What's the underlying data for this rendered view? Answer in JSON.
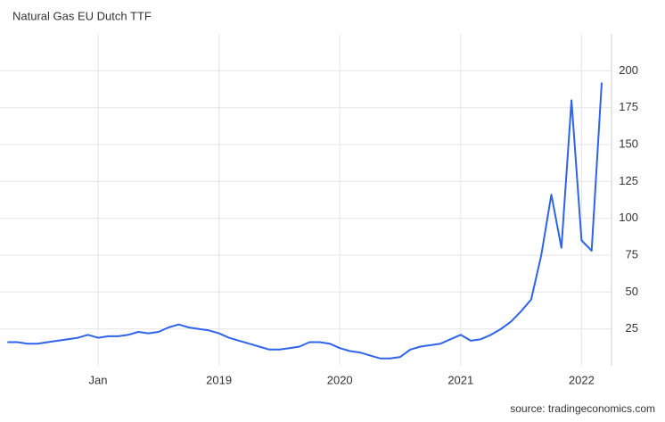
{
  "chart_data": {
    "type": "line",
    "title": "Natural Gas EU Dutch TTF",
    "source": "source: tradingeconomics.com",
    "categories": [
      null,
      null,
      null,
      null,
      null,
      null,
      null,
      null,
      null,
      "Jan",
      null,
      null,
      null,
      null,
      null,
      null,
      null,
      null,
      null,
      null,
      null,
      "2019",
      null,
      null,
      null,
      null,
      null,
      null,
      null,
      null,
      null,
      null,
      null,
      "2020",
      null,
      null,
      null,
      null,
      null,
      null,
      null,
      null,
      null,
      null,
      null,
      "2021",
      null,
      null,
      null,
      null,
      null,
      null,
      null,
      null,
      null,
      null,
      null,
      "2022",
      null,
      null
    ],
    "series": [
      {
        "name": "Natural Gas EU Dutch TTF",
        "color": "#2f64e8",
        "values": [
          16,
          16,
          15,
          15,
          16,
          17,
          18,
          19,
          21,
          19,
          20,
          20,
          21,
          23,
          22,
          23,
          26,
          28,
          26,
          25,
          24,
          22,
          19,
          17,
          15,
          13,
          11,
          11,
          12,
          13,
          16,
          16,
          15,
          12,
          10,
          9,
          7,
          5,
          5,
          6,
          11,
          13,
          14,
          15,
          18,
          21,
          17,
          18,
          21,
          25,
          30,
          37,
          45,
          75,
          116,
          80,
          180,
          85,
          78,
          192
        ]
      }
    ],
    "ylim": [
      0,
      225
    ],
    "yticks": [
      25,
      50,
      75,
      100,
      125,
      150,
      175,
      200
    ],
    "grid": true
  }
}
